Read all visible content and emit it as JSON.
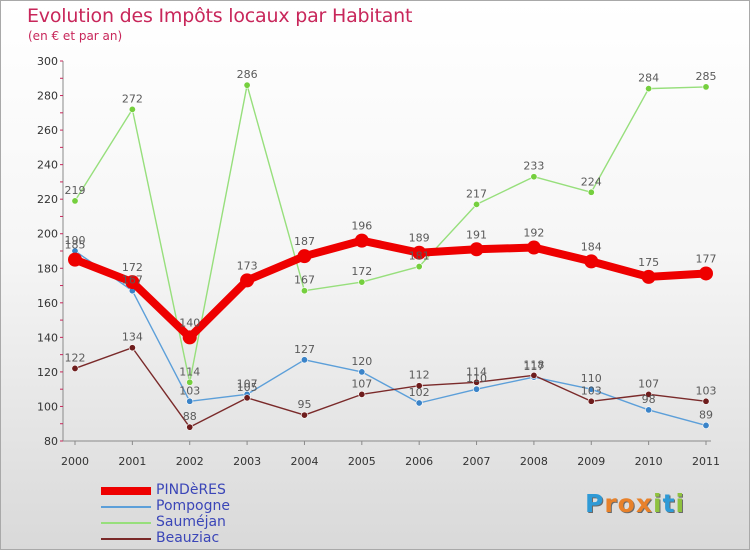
{
  "header": {
    "title": "Evolution des Impôts locaux par Habitant",
    "subtitle": "(en € et par an)"
  },
  "logo": {
    "letters": [
      "P",
      "r",
      "o",
      "x",
      "i",
      "t",
      "i"
    ],
    "colors": [
      "#2f9ad6",
      "#e8812a",
      "#e8812a",
      "#e8812a",
      "#8fc23f",
      "#2f9ad6",
      "#8fc23f"
    ]
  },
  "chart_data": {
    "type": "line",
    "x": [
      "2000",
      "2001",
      "2002",
      "2003",
      "2004",
      "2005",
      "2006",
      "2007",
      "2008",
      "2009",
      "2010",
      "2011"
    ],
    "ylim": [
      80,
      300
    ],
    "yticks": [
      "80",
      "100",
      "120",
      "140",
      "160",
      "180",
      "200",
      "220",
      "240",
      "260",
      "280",
      "300"
    ],
    "grid": false,
    "legend_position": "bottom-left",
    "series": [
      {
        "name": "PINDèRES",
        "values": [
          185,
          172,
          140,
          173,
          187,
          196,
          189,
          191,
          192,
          184,
          175,
          177
        ],
        "color": "#ee0000",
        "marker": "#ee0000",
        "label_color": "#5a5a5a",
        "emphasis": true
      },
      {
        "name": "Pompogne",
        "values": [
          190,
          167,
          103,
          107,
          127,
          120,
          102,
          110,
          117,
          110,
          98,
          89
        ],
        "color": "#5c9fd9",
        "marker": "#3a83c8",
        "label_color": "#5a5a5a",
        "emphasis": false
      },
      {
        "name": "Sauméjan",
        "values": [
          219,
          272,
          114,
          286,
          167,
          172,
          181,
          217,
          233,
          224,
          284,
          285
        ],
        "color": "#97df7c",
        "marker": "#75cf3e",
        "label_color": "#5a5a5a",
        "emphasis": false
      },
      {
        "name": "Beauziac",
        "values": [
          122,
          134,
          88,
          105,
          95,
          107,
          112,
          114,
          118,
          103,
          107,
          103
        ],
        "color": "#7a2a2a",
        "marker": "#6e1d1d",
        "label_color": "#5a5a5a",
        "emphasis": false
      }
    ]
  }
}
